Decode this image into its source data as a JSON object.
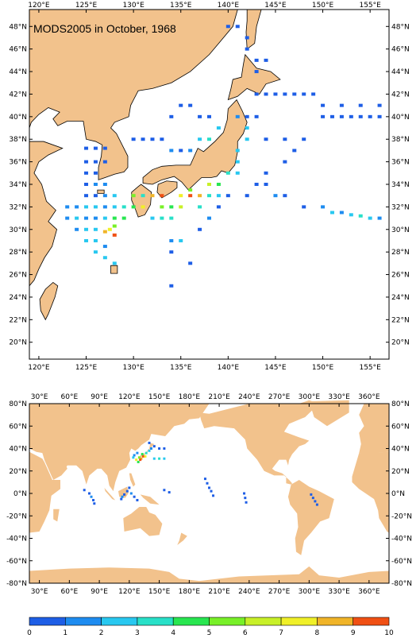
{
  "title": "MODS2005 in October, 1968",
  "colors": {
    "land": "#f2c28c",
    "ocean": "#ffffff",
    "coast": "#000000"
  },
  "map_top": {
    "lon_range": [
      119,
      157
    ],
    "lat_range": [
      18.5,
      49.5
    ],
    "lon_ticks": [
      "120°E",
      "125°E",
      "130°E",
      "135°E",
      "140°E",
      "145°E",
      "150°E",
      "155°E"
    ],
    "lat_ticks": [
      "48°N",
      "46°N",
      "44°N",
      "42°N",
      "40°N",
      "38°N",
      "36°N",
      "34°N",
      "32°N",
      "30°N",
      "28°N",
      "26°N",
      "24°N",
      "22°N",
      "20°N"
    ]
  },
  "map_bottom": {
    "lon_range": [
      20,
      380
    ],
    "lat_range": [
      -80,
      80
    ],
    "lon_ticks": [
      "30°E",
      "60°E",
      "90°E",
      "120°E",
      "150°E",
      "180°E",
      "210°E",
      "240°E",
      "270°E",
      "300°E",
      "330°E",
      "360°E"
    ],
    "lat_ticks": [
      "80°N",
      "60°N",
      "40°N",
      "20°N",
      "0°N",
      "-20°N",
      "-40°N",
      "-60°N",
      "-80°N"
    ]
  },
  "colorbar": {
    "labels": [
      "0",
      "1",
      "2",
      "3",
      "4",
      "5",
      "6",
      "7",
      "8",
      "9",
      "10"
    ],
    "colors": [
      "#1e5ee6",
      "#1e8cf0",
      "#28c8f0",
      "#28e0c8",
      "#28e650",
      "#78f028",
      "#c8f028",
      "#f0f028",
      "#f0b428",
      "#f05014"
    ]
  },
  "observations": [
    [
      125,
      37.2,
      1
    ],
    [
      126,
      37.2,
      1
    ],
    [
      127,
      37.2,
      1
    ],
    [
      125,
      36,
      1
    ],
    [
      126,
      36,
      1
    ],
    [
      127,
      36,
      1
    ],
    [
      125,
      35,
      1
    ],
    [
      126,
      35,
      1
    ],
    [
      125,
      34,
      1
    ],
    [
      126,
      34,
      2
    ],
    [
      127,
      34,
      2
    ],
    [
      125,
      33,
      1
    ],
    [
      126,
      33,
      1
    ],
    [
      127,
      33,
      2
    ],
    [
      128,
      33,
      3
    ],
    [
      123,
      32,
      2
    ],
    [
      124,
      32,
      2
    ],
    [
      125,
      32,
      3
    ],
    [
      126,
      32,
      3
    ],
    [
      127,
      32,
      2
    ],
    [
      128,
      32,
      3
    ],
    [
      129,
      32,
      4
    ],
    [
      123,
      31,
      2
    ],
    [
      124,
      31,
      3
    ],
    [
      125,
      31,
      2
    ],
    [
      126,
      31,
      2
    ],
    [
      127,
      31,
      3
    ],
    [
      128,
      31,
      5
    ],
    [
      129,
      31,
      5
    ],
    [
      124,
      30,
      2
    ],
    [
      125,
      30,
      3
    ],
    [
      126,
      30,
      3
    ],
    [
      127,
      29.8,
      9
    ],
    [
      128,
      29.5,
      10
    ],
    [
      127.5,
      30,
      8
    ],
    [
      128,
      30.3,
      6
    ],
    [
      125,
      29,
      3
    ],
    [
      126,
      29,
      3
    ],
    [
      127,
      28.5,
      2
    ],
    [
      126,
      28,
      3
    ],
    [
      127,
      27.5,
      3
    ],
    [
      128,
      27,
      3
    ],
    [
      130,
      33,
      6
    ],
    [
      131,
      33,
      4
    ],
    [
      130,
      32,
      5
    ],
    [
      131,
      32,
      8
    ],
    [
      132,
      33,
      9
    ],
    [
      133,
      33,
      10
    ],
    [
      133,
      32,
      6
    ],
    [
      134,
      32,
      5
    ],
    [
      132,
      31,
      3
    ],
    [
      133,
      31,
      4
    ],
    [
      134,
      31,
      4
    ],
    [
      135,
      32,
      7
    ],
    [
      136,
      33,
      10
    ],
    [
      137,
      33,
      9
    ],
    [
      136,
      33.5,
      6
    ],
    [
      135,
      33,
      8
    ],
    [
      138,
      34,
      7
    ],
    [
      139,
      34,
      5
    ],
    [
      138,
      33,
      4
    ],
    [
      137,
      32,
      4
    ],
    [
      140,
      35,
      4
    ],
    [
      141,
      35,
      3
    ],
    [
      139,
      33,
      3
    ],
    [
      141,
      36,
      3
    ],
    [
      141,
      37,
      3
    ],
    [
      142,
      38,
      3
    ],
    [
      142,
      39,
      3
    ],
    [
      141,
      40,
      2
    ],
    [
      142,
      40,
      1
    ],
    [
      143,
      40,
      1
    ],
    [
      130,
      38,
      1
    ],
    [
      131,
      38,
      1
    ],
    [
      132,
      38,
      1
    ],
    [
      133,
      38,
      1
    ],
    [
      134,
      37,
      2
    ],
    [
      135,
      37,
      1
    ],
    [
      136,
      37,
      2
    ],
    [
      137,
      38,
      3
    ],
    [
      134,
      40,
      1
    ],
    [
      135,
      41,
      1
    ],
    [
      136,
      41,
      1
    ],
    [
      137,
      40,
      1
    ],
    [
      138,
      40,
      1
    ],
    [
      139,
      39,
      3
    ],
    [
      138,
      38,
      4
    ],
    [
      143,
      42,
      1
    ],
    [
      144,
      42,
      1
    ],
    [
      145,
      42,
      1
    ],
    [
      146,
      42,
      1
    ],
    [
      147,
      42,
      1
    ],
    [
      148,
      42,
      1
    ],
    [
      149,
      42,
      1
    ],
    [
      150,
      40,
      1
    ],
    [
      151,
      40,
      1
    ],
    [
      152,
      40,
      1
    ],
    [
      153,
      40,
      1
    ],
    [
      154,
      40,
      1
    ],
    [
      155,
      40,
      1
    ],
    [
      156,
      40,
      1
    ],
    [
      150,
      41,
      1
    ],
    [
      152,
      41,
      1
    ],
    [
      154,
      41,
      1
    ],
    [
      156,
      41,
      1
    ],
    [
      143,
      44,
      1
    ],
    [
      144,
      45,
      1
    ],
    [
      143,
      45,
      1
    ],
    [
      142,
      46,
      1
    ],
    [
      142,
      47,
      1
    ],
    [
      141,
      48,
      1
    ],
    [
      140,
      48,
      1
    ],
    [
      143,
      34,
      1
    ],
    [
      144,
      34,
      1
    ],
    [
      145,
      33,
      2
    ],
    [
      146,
      33,
      1
    ],
    [
      148,
      32,
      1
    ],
    [
      150,
      32,
      2
    ],
    [
      151,
      31.5,
      3
    ],
    [
      152,
      31.5,
      2
    ],
    [
      153,
      31.3,
      3
    ],
    [
      154,
      31.2,
      4
    ],
    [
      155,
      31,
      3
    ],
    [
      156,
      31,
      2
    ],
    [
      135,
      29,
      3
    ],
    [
      134,
      29,
      2
    ],
    [
      134,
      28,
      1
    ],
    [
      136,
      27,
      1
    ],
    [
      134,
      25,
      1
    ],
    [
      137,
      30,
      1
    ],
    [
      138,
      31,
      2
    ],
    [
      139,
      32,
      1
    ],
    [
      140,
      33,
      1
    ],
    [
      142,
      33,
      1
    ],
    [
      144,
      35,
      1
    ],
    [
      146,
      36,
      1
    ],
    [
      147,
      37,
      1
    ],
    [
      148,
      38,
      1
    ],
    [
      146,
      38,
      1
    ],
    [
      144,
      38,
      1
    ]
  ],
  "observations_global": [
    [
      128,
      36,
      2
    ],
    [
      130,
      32,
      6
    ],
    [
      132,
      31,
      9
    ],
    [
      134,
      33,
      10
    ],
    [
      136,
      33,
      8
    ],
    [
      131,
      30,
      10
    ],
    [
      133,
      35,
      5
    ],
    [
      137,
      36,
      4
    ],
    [
      140,
      38,
      3
    ],
    [
      142,
      40,
      2
    ],
    [
      145,
      42,
      1
    ],
    [
      150,
      40,
      1
    ],
    [
      155,
      40,
      1
    ],
    [
      140,
      45,
      1
    ],
    [
      145,
      31,
      3
    ],
    [
      150,
      31,
      4
    ],
    [
      155,
      31,
      3
    ],
    [
      125,
      34,
      2
    ],
    [
      127,
      30,
      8
    ],
    [
      129,
      28,
      5
    ],
    [
      124,
      32,
      3
    ],
    [
      115,
      -1,
      1
    ],
    [
      113,
      -3,
      2
    ],
    [
      112,
      -5,
      1
    ],
    [
      118,
      2,
      1
    ],
    [
      120,
      5,
      1
    ],
    [
      122,
      0,
      2
    ],
    [
      125,
      -3,
      1
    ],
    [
      128,
      -6,
      1
    ],
    [
      80,
      0,
      1
    ],
    [
      82,
      -3,
      2
    ],
    [
      84,
      -6,
      1
    ],
    [
      85,
      -9,
      1
    ],
    [
      75,
      3,
      1
    ],
    [
      196,
      13,
      1
    ],
    [
      198,
      9,
      1
    ],
    [
      200,
      5,
      1
    ],
    [
      202,
      2,
      1
    ],
    [
      204,
      -2,
      1
    ],
    [
      235,
      0,
      1
    ],
    [
      236,
      -4,
      1
    ],
    [
      237,
      -8,
      1
    ],
    [
      302,
      -1,
      1
    ],
    [
      304,
      -4,
      1
    ],
    [
      306,
      -7,
      1
    ],
    [
      308,
      -10,
      1
    ],
    [
      155,
      3,
      1
    ],
    [
      160,
      1,
      1
    ]
  ]
}
